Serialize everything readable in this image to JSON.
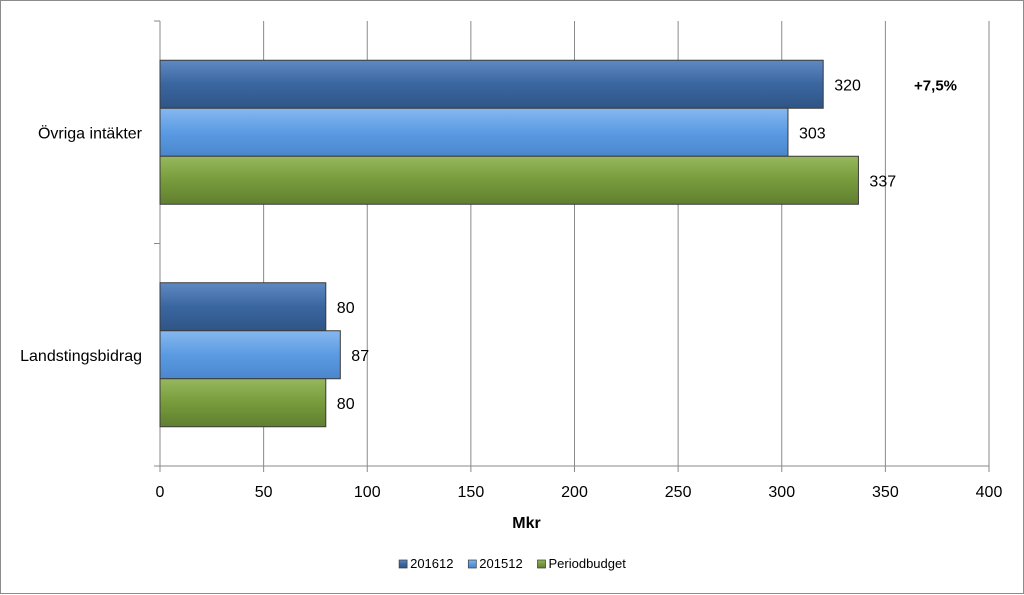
{
  "chart_data": {
    "type": "bar",
    "orientation": "horizontal",
    "categories": [
      "Övriga intäkter",
      "Landstingsbidrag"
    ],
    "series": [
      {
        "name": "201612",
        "values": [
          320,
          80
        ],
        "color": "#3A66A0"
      },
      {
        "name": "201512",
        "values": [
          303,
          87
        ],
        "color": "#5B9BE3"
      },
      {
        "name": "Periodbudget",
        "values": [
          337,
          80
        ],
        "color": "#779B3C"
      }
    ],
    "data_labels": [
      [
        "320",
        "80"
      ],
      [
        "303",
        "87"
      ],
      [
        "337",
        "80"
      ]
    ],
    "xlabel": "Mkr",
    "ylabel": "",
    "xlim": [
      0,
      400
    ],
    "xticks": [
      0,
      50,
      100,
      150,
      200,
      250,
      300,
      350,
      400
    ],
    "xtick_labels": [
      "0",
      "50",
      "100",
      "150",
      "200",
      "250",
      "300",
      "350",
      "400"
    ],
    "grid": true,
    "legend_position": "bottom",
    "annotations": [
      {
        "text": "+7,5%",
        "category": "Övriga intäkter"
      }
    ]
  }
}
